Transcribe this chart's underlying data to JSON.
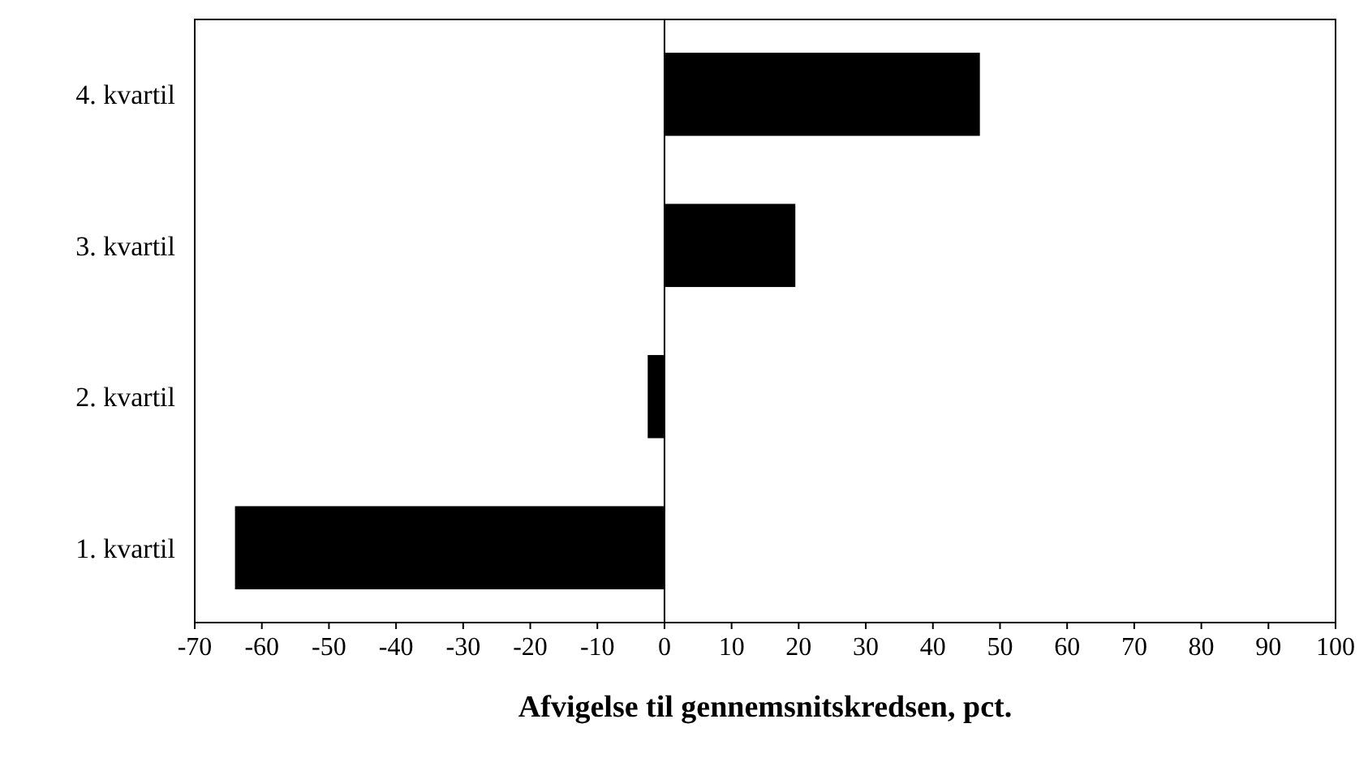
{
  "chart_data": {
    "type": "bar",
    "orientation": "horizontal",
    "xlabel": "Afvigelse til gennemsnitskredsen, pct.",
    "categories": [
      "4. kvartil",
      "3. kvartil",
      "2. kvartil",
      "1. kvartil"
    ],
    "values": [
      47,
      19.5,
      -2.5,
      -64
    ],
    "color": "#000000",
    "xlim": [
      -70,
      100
    ],
    "xticks": [
      -70,
      -60,
      -50,
      -40,
      -30,
      -20,
      -10,
      0,
      10,
      20,
      30,
      40,
      50,
      60,
      70,
      80,
      90,
      100
    ],
    "ref_lines": [
      {
        "axis": "x",
        "value": 0,
        "color": "#000000"
      }
    ]
  }
}
